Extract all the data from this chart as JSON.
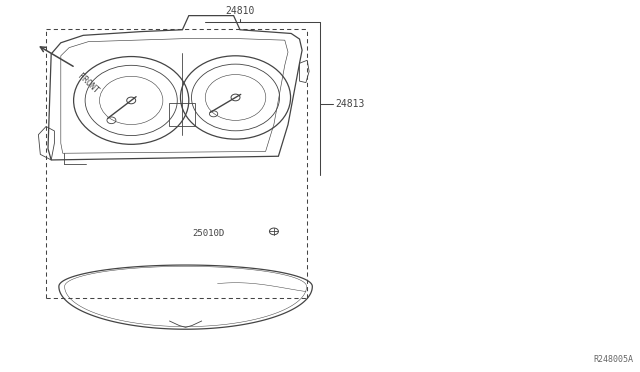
{
  "bg_color": "#ffffff",
  "line_color": "#444444",
  "title_ref": "R248005A",
  "label_24810": "24810",
  "label_24813": "24813",
  "label_25010D": "25010D",
  "front_label": "FRONT"
}
